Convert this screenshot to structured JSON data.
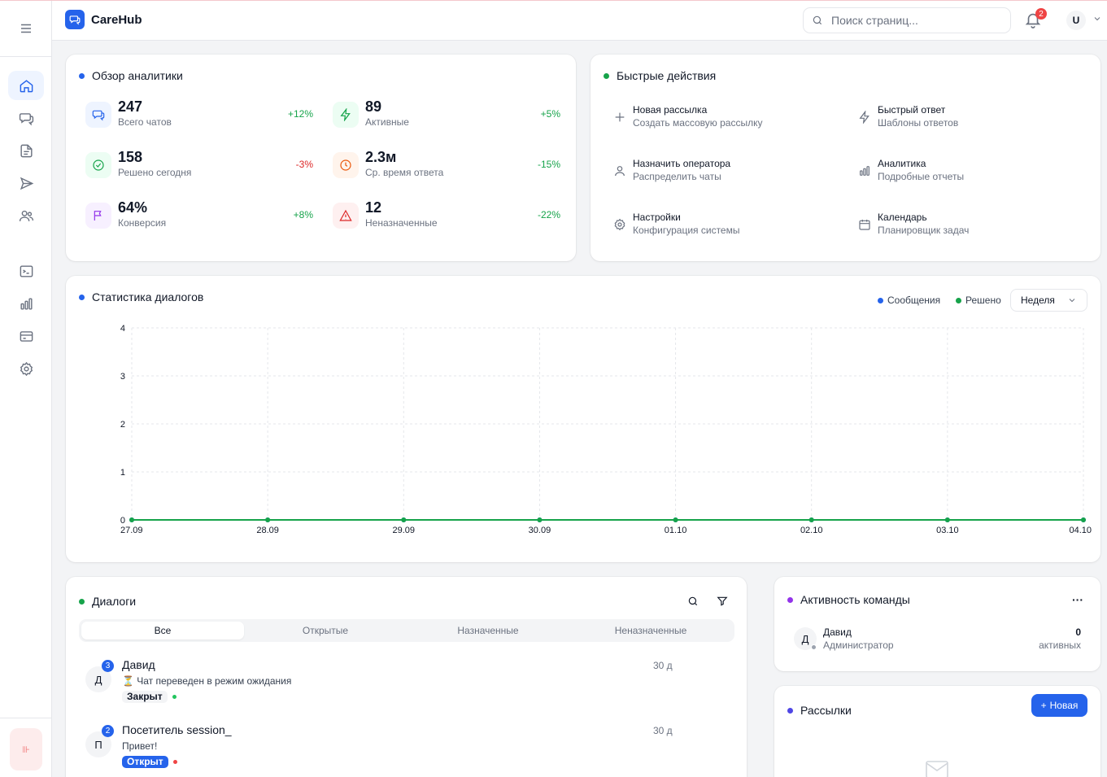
{
  "app": {
    "name": "CareHub"
  },
  "search": {
    "placeholder": "Поиск страниц..."
  },
  "notifications": {
    "count": "2"
  },
  "user": {
    "initial": "U"
  },
  "sidebar": {
    "items": [
      {
        "icon": "home-icon",
        "active": true
      },
      {
        "icon": "chats-icon"
      },
      {
        "icon": "document-icon"
      },
      {
        "icon": "send-icon"
      },
      {
        "icon": "users-icon"
      },
      {
        "icon": "terminal-icon"
      },
      {
        "icon": "bar-chart-icon"
      },
      {
        "icon": "credit-card-icon"
      },
      {
        "icon": "settings-icon"
      }
    ],
    "collapse_glyph": "⊪"
  },
  "analytics": {
    "title": "Обзор аналитики",
    "stats": [
      {
        "value": "247",
        "label": "Всего чатов",
        "delta": "+12%",
        "trend": "up",
        "icon": "chat-icon",
        "color": "#2563eb",
        "bg": "#eef4ff"
      },
      {
        "value": "89",
        "label": "Активные",
        "delta": "+5%",
        "trend": "up",
        "icon": "lightning-icon",
        "color": "#16a34a",
        "bg": "#ecfdf3"
      },
      {
        "value": "158",
        "label": "Решено сегодня",
        "delta": "-3%",
        "trend": "down",
        "icon": "check-circle-icon",
        "color": "#16a34a",
        "bg": "#ecfdf3"
      },
      {
        "value": "2.3м",
        "label": "Ср. время ответа",
        "delta": "-15%",
        "trend": "up",
        "icon": "clock-icon",
        "color": "#ea580c",
        "bg": "#fff4ec"
      },
      {
        "value": "64%",
        "label": "Конверсия",
        "delta": "+8%",
        "trend": "up",
        "icon": "flag-icon",
        "color": "#9333ea",
        "bg": "#f7f0ff"
      },
      {
        "value": "12",
        "label": "Неназначенные",
        "delta": "-22%",
        "trend": "up",
        "icon": "alert-triangle-icon",
        "color": "#dc2626",
        "bg": "#fef0f0"
      }
    ]
  },
  "quick_actions": {
    "title": "Быстрые действия",
    "items": [
      {
        "title": "Новая рассылка",
        "desc": "Создать массовую рассылку",
        "icon": "plus-icon"
      },
      {
        "title": "Быстрый ответ",
        "desc": "Шаблоны ответов",
        "icon": "lightning-icon"
      },
      {
        "title": "Назначить оператора",
        "desc": "Распределить чаты",
        "icon": "user-icon"
      },
      {
        "title": "Аналитика",
        "desc": "Подробные отчеты",
        "icon": "bar-chart-icon"
      },
      {
        "title": "Настройки",
        "desc": "Конфигурация системы",
        "icon": "settings-icon"
      },
      {
        "title": "Календарь",
        "desc": "Планировщик задач",
        "icon": "calendar-icon"
      }
    ]
  },
  "stats_chart": {
    "title": "Статистика диалогов",
    "period": "Неделя",
    "legend_colors": {
      "messages": "#2563eb",
      "resolved": "#16a34a"
    }
  },
  "chart_data": {
    "type": "line",
    "x": [
      "27.09",
      "28.09",
      "29.09",
      "30.09",
      "01.10",
      "02.10",
      "03.10",
      "04.10"
    ],
    "yticks": [
      "0",
      "1",
      "2",
      "3",
      "4"
    ],
    "ylim": [
      0,
      4
    ],
    "grid": true,
    "legend_position": "top-right",
    "series": [
      {
        "name": "Сообщения",
        "color": "#2563eb",
        "values": [
          0,
          0,
          0,
          0,
          0,
          0,
          0,
          0
        ]
      },
      {
        "name": "Решено",
        "color": "#16a34a",
        "values": [
          0,
          0,
          0,
          0,
          0,
          0,
          0,
          0
        ]
      }
    ]
  },
  "dialogs": {
    "title": "Диалоги",
    "tabs": [
      "Все",
      "Открытые",
      "Назначенные",
      "Неназначенные"
    ],
    "items": [
      {
        "initial": "Д",
        "badge": "3",
        "name": "Давид",
        "message": "⏳ Чат переведен в режим ожидания",
        "status": "Закрыт",
        "status_type": "closed",
        "status_dot": "#22c55e",
        "time": "30 д"
      },
      {
        "initial": "П",
        "badge": "2",
        "name": "Посетитель session_",
        "message": "Привет!",
        "status": "Открыт",
        "status_type": "open",
        "status_dot": "#ef4444",
        "time": "30 д"
      }
    ]
  },
  "team": {
    "title": "Активность команды",
    "more": "···",
    "member": {
      "initial": "Д",
      "name": "Давид",
      "role": "Администратор",
      "count": "0",
      "count_label": "активных"
    }
  },
  "broadcasts": {
    "title": "Рассылки",
    "new_button": "Новая"
  }
}
